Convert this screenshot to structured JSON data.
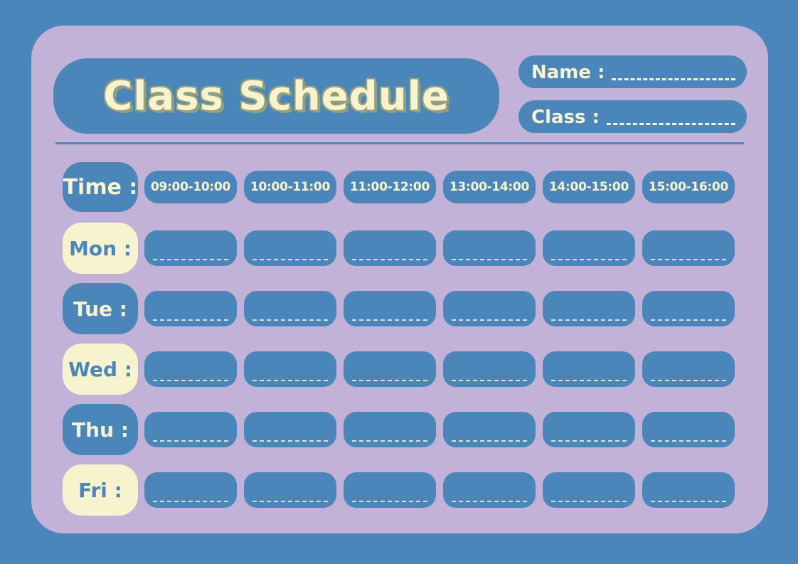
{
  "header": {
    "title": "Class Schedule",
    "name_label": "Name :",
    "class_label": "Class :"
  },
  "schedule": {
    "time_label": "Time :",
    "time_slots": [
      "09:00-10:00",
      "10:00-11:00",
      "11:00-12:00",
      "13:00-14:00",
      "14:00-15:00",
      "15:00-16:00"
    ],
    "days": [
      {
        "label": "Mon :",
        "variant": "cream"
      },
      {
        "label": "Tue :",
        "variant": "blue"
      },
      {
        "label": "Wed :",
        "variant": "cream"
      },
      {
        "label": "Thu :",
        "variant": "blue"
      },
      {
        "label": "Fri :",
        "variant": "cream"
      }
    ]
  },
  "colors": {
    "background_blue": "#4b86bb",
    "panel_lavender": "#c3b2d7",
    "cream": "#f8f3cf",
    "title_outline_olive": "#94a07c"
  }
}
